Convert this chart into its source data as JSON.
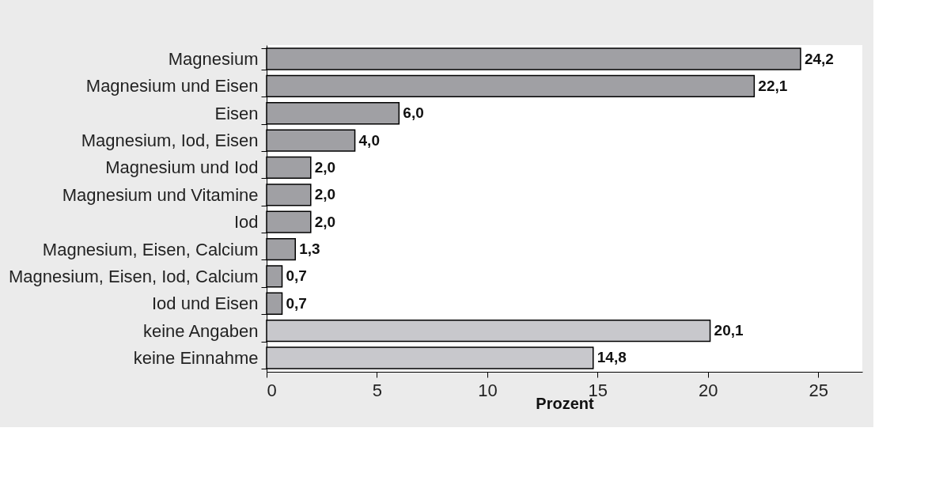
{
  "chart_data": {
    "type": "bar",
    "orientation": "horizontal",
    "xlabel": "Prozent",
    "categories": [
      "Magnesium",
      "Magnesium und Eisen",
      "Eisen",
      "Magnesium, Iod, Eisen",
      "Magnesium und Iod",
      "Magnesium und Vitamine",
      "Iod",
      "Magnesium, Eisen, Calcium",
      "Magnesium, Eisen, Iod, Calcium",
      "Iod und Eisen",
      "keine Angaben",
      "keine Einnahme"
    ],
    "values": [
      24.2,
      22.1,
      6.0,
      4.0,
      2.0,
      2.0,
      2.0,
      1.3,
      0.7,
      0.7,
      20.1,
      14.8
    ],
    "value_labels": [
      "24,2",
      "22,1",
      "6,0",
      "4,0",
      "2,0",
      "2,0",
      "2,0",
      "1,3",
      "0,7",
      "0,7",
      "20,1",
      "14,8"
    ],
    "colors": [
      "#a0a0a4",
      "#a0a0a4",
      "#a0a0a4",
      "#a0a0a4",
      "#a0a0a4",
      "#a0a0a4",
      "#a0a0a4",
      "#a0a0a4",
      "#a0a0a4",
      "#a0a0a4",
      "#c8c8cc",
      "#c8c8cc"
    ],
    "xlim": [
      0,
      27
    ],
    "xticks": [
      0,
      5,
      10,
      15,
      20,
      25
    ],
    "grid": false
  }
}
